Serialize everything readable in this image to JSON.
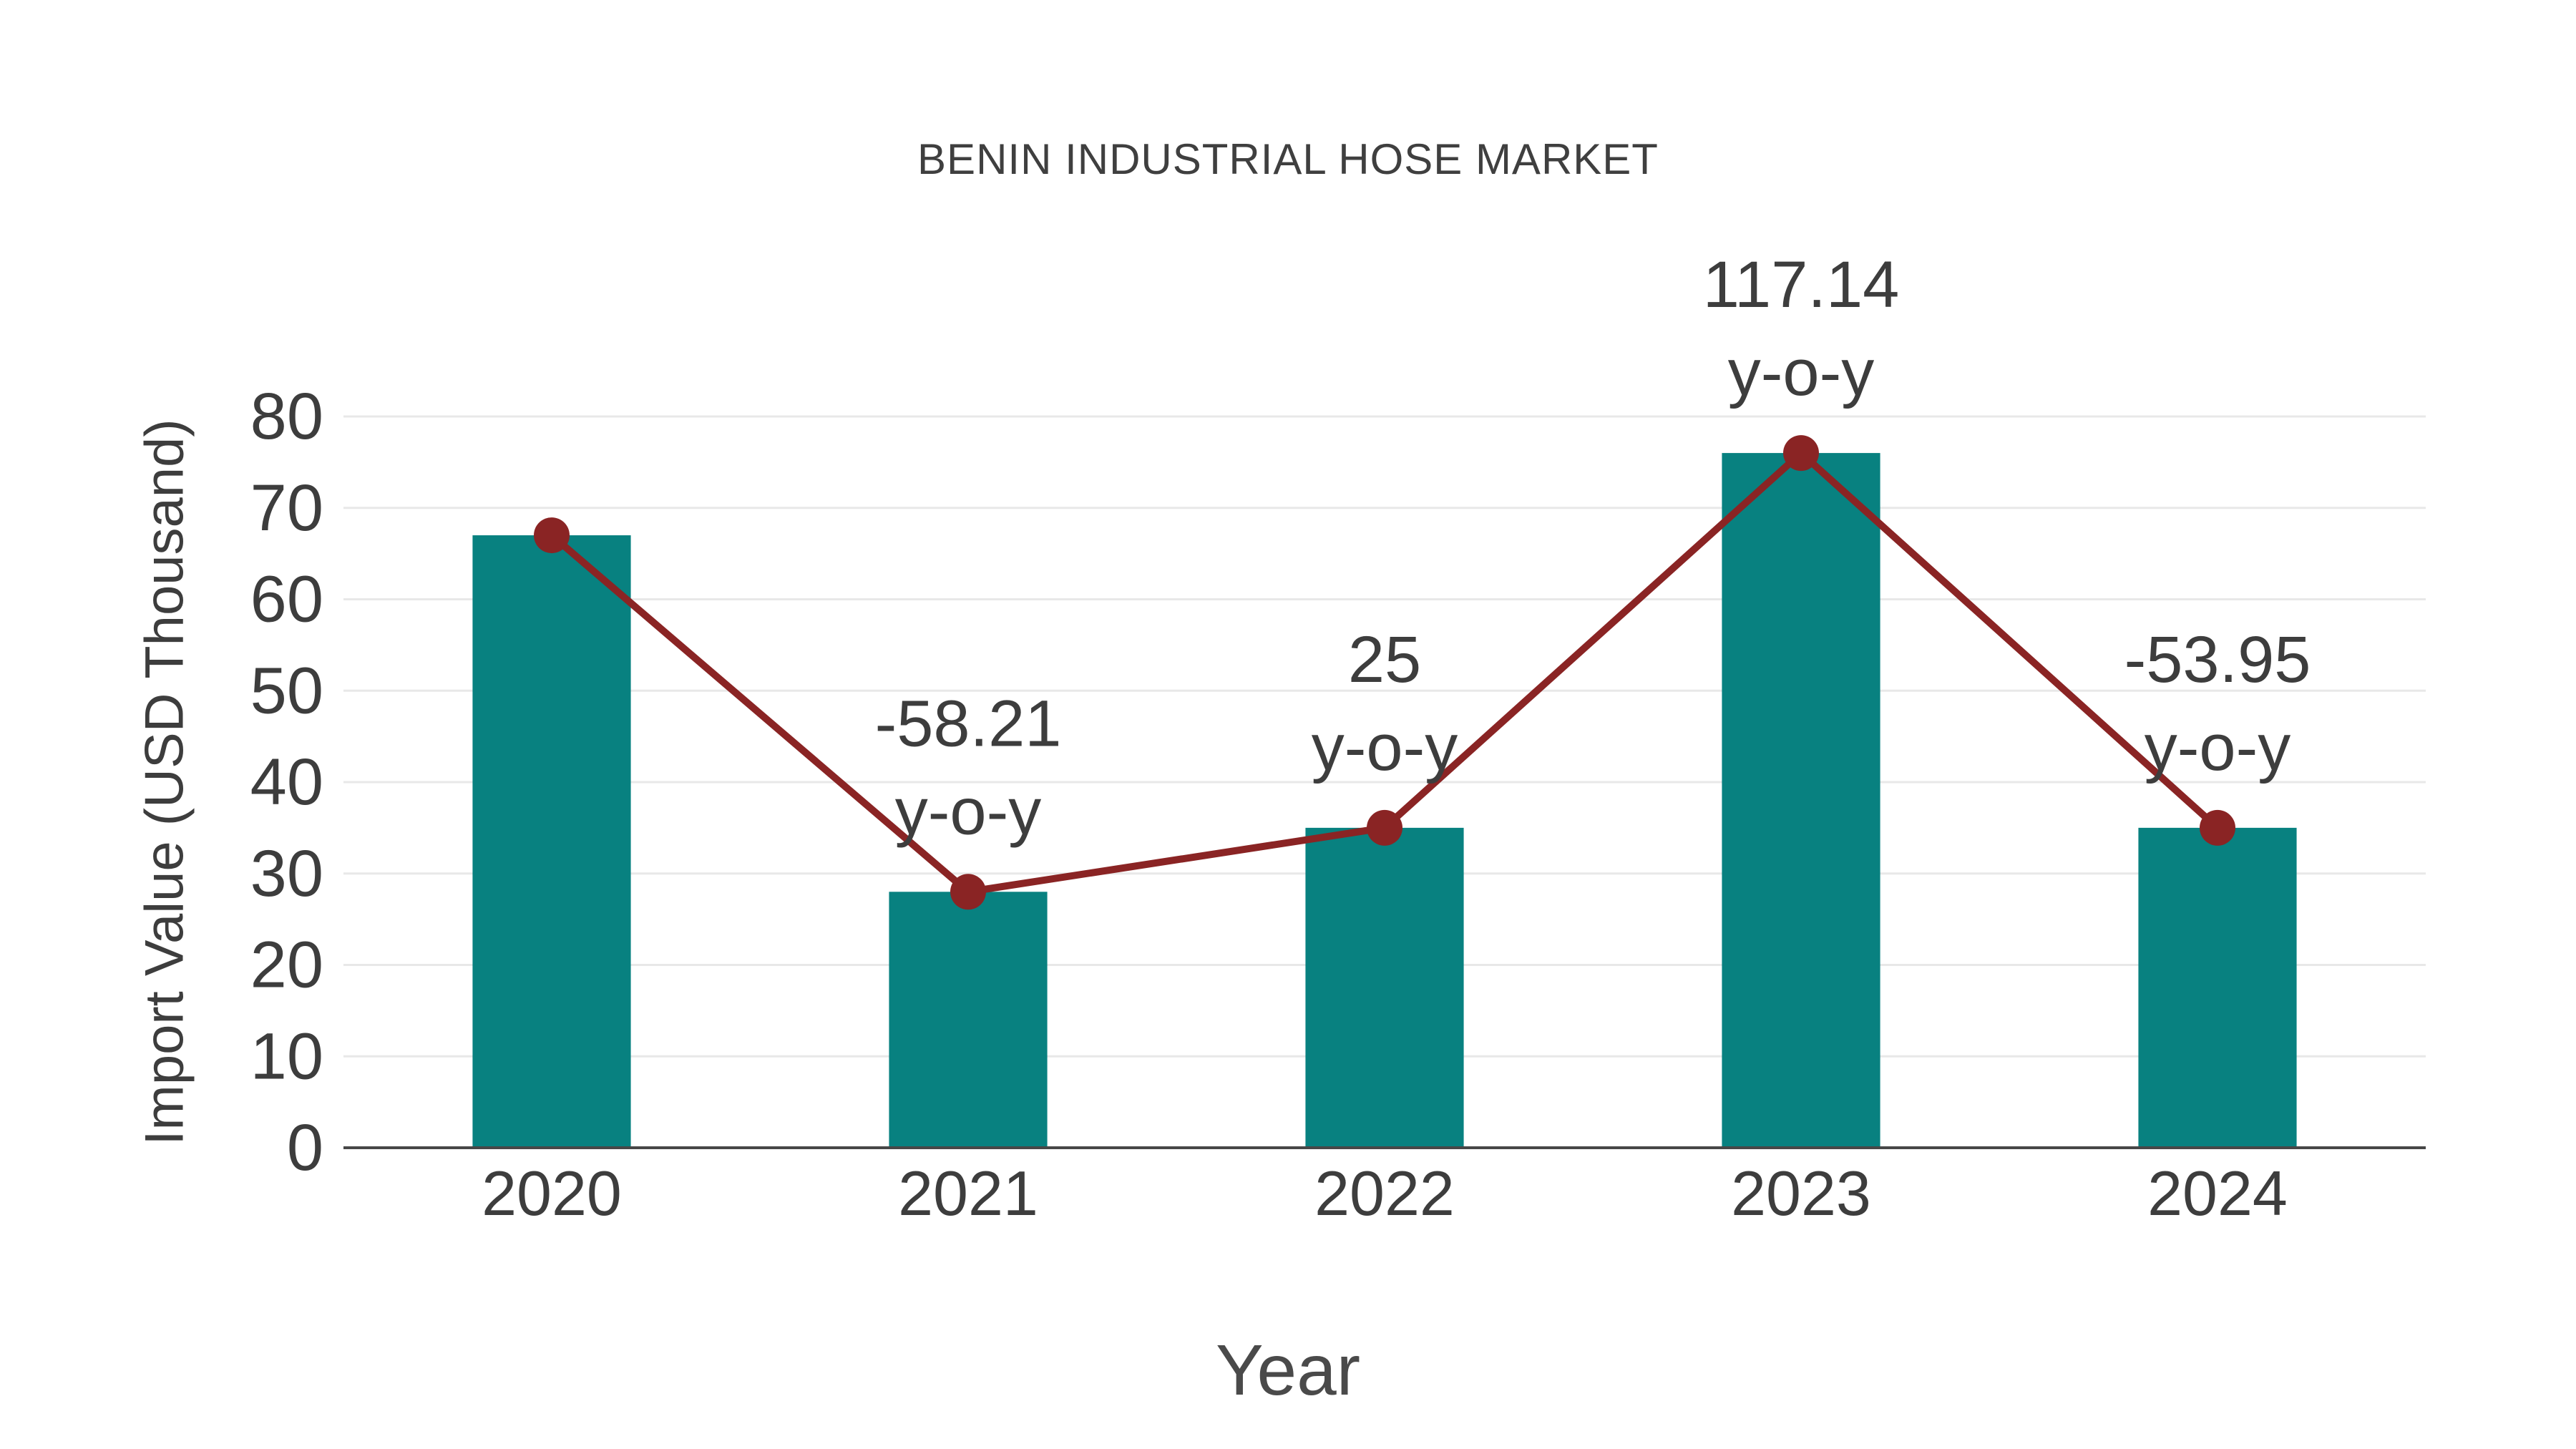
{
  "chart_data": {
    "type": "bar",
    "title": "BENIN INDUSTRIAL HOSE MARKET",
    "xlabel": "Year",
    "ylabel": "Import Value (USD Thousand)",
    "categories": [
      "2020",
      "2021",
      "2022",
      "2023",
      "2024"
    ],
    "series": [
      {
        "name": "import-value-bars",
        "type": "bar",
        "values": [
          67,
          28,
          35,
          76,
          35
        ]
      },
      {
        "name": "import-value-trend",
        "type": "line",
        "values": [
          67,
          28,
          35,
          76,
          35
        ]
      }
    ],
    "annotations": [
      {
        "category": "2021",
        "value_text": "-58.21",
        "suffix": "y-o-y"
      },
      {
        "category": "2022",
        "value_text": "25",
        "suffix": "y-o-y"
      },
      {
        "category": "2023",
        "value_text": "117.14",
        "suffix": "y-o-y"
      },
      {
        "category": "2024",
        "value_text": "-53.95",
        "suffix": "y-o-y"
      }
    ],
    "ylim": [
      0,
      80
    ],
    "yticks": [
      0,
      10,
      20,
      30,
      40,
      50,
      60,
      70,
      80
    ],
    "grid": "horizontal",
    "legend": "none",
    "colors": {
      "bar": "#088180",
      "line": "#8A2424",
      "marker": "#8A2424",
      "grid": "#E8E8E8",
      "axis": "#474747",
      "text": "#3D3D3D"
    }
  }
}
